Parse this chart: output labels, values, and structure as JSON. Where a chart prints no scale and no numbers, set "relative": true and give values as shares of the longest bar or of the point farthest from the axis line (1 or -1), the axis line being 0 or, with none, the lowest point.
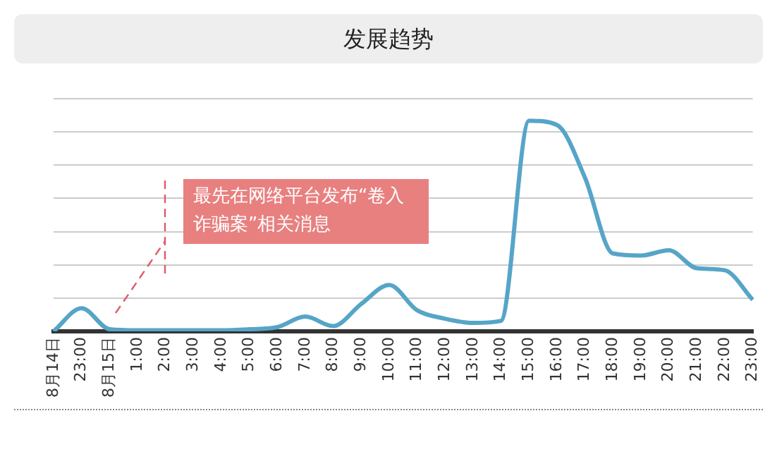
{
  "chart_data": {
    "type": "line",
    "title": "发展趋势",
    "relative": true,
    "grid": "y",
    "color": "#56a5c8",
    "marker": "none",
    "line_style": "solid",
    "categories": [
      "8月14日",
      "23:00",
      "8月15日",
      "1:00",
      "2:00",
      "3:00",
      "4:00",
      "5:00",
      "6:00",
      "7:00",
      "8:00",
      "9:00",
      "10:00",
      "11:00",
      "12:00",
      "13:00",
      "14:00",
      "15:00",
      "16:00",
      "17:00",
      "18:00",
      "19:00",
      "20:00",
      "21:00",
      "22:00",
      "23:00"
    ],
    "values": [
      0,
      0.11,
      0.01,
      0.005,
      0.005,
      0.005,
      0.005,
      0.01,
      0.02,
      0.07,
      0.025,
      0.13,
      0.22,
      0.1,
      0.06,
      0.04,
      0.05,
      1.0,
      0.98,
      0.73,
      0.37,
      0.36,
      0.385,
      0.3,
      0.29,
      0.15
    ],
    "annotations": [
      "最先在网络平台发布“卷入诈骗案”相关消息"
    ]
  }
}
